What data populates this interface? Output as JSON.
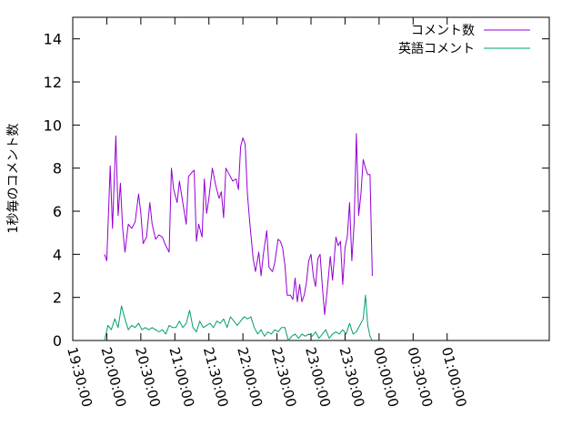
{
  "chart_data": {
    "type": "line",
    "title": "",
    "xlabel": "",
    "ylabel": "1秒毎のコメント数",
    "ylim": [
      0,
      15
    ],
    "yticks": [
      0,
      2,
      4,
      6,
      8,
      10,
      12,
      14
    ],
    "xlim_minutes": [
      -150,
      270
    ],
    "xticks": [
      {
        "label": "19:30:00",
        "minute": -150
      },
      {
        "label": "20:00:00",
        "minute": -120
      },
      {
        "label": "20:30:00",
        "minute": -90
      },
      {
        "label": "21:00:00",
        "minute": -60
      },
      {
        "label": "21:30:00",
        "minute": -30
      },
      {
        "label": "22:00:00",
        "minute": 0
      },
      {
        "label": "22:30:00",
        "minute": 30
      },
      {
        "label": "23:00:00",
        "minute": 60
      },
      {
        "label": "23:30:00",
        "minute": 90
      },
      {
        "label": "00:00:00",
        "minute": 120
      },
      {
        "label": "00:30:00",
        "minute": 150
      },
      {
        "label": "01:00:00",
        "minute": 180
      }
    ],
    "grid": false,
    "legend_position": "top-right",
    "series": [
      {
        "name": "コメント数",
        "color": "#9400d3",
        "points": [
          [
            -122,
            4.0
          ],
          [
            -120,
            3.7
          ],
          [
            -117,
            8.1
          ],
          [
            -115,
            5.2
          ],
          [
            -112,
            9.5
          ],
          [
            -110,
            5.8
          ],
          [
            -108,
            7.3
          ],
          [
            -106,
            5.2
          ],
          [
            -104,
            4.1
          ],
          [
            -101,
            5.4
          ],
          [
            -98,
            5.2
          ],
          [
            -95,
            5.5
          ],
          [
            -92,
            6.8
          ],
          [
            -90,
            5.9
          ],
          [
            -88,
            4.5
          ],
          [
            -85,
            4.8
          ],
          [
            -82,
            6.4
          ],
          [
            -80,
            5.4
          ],
          [
            -77,
            4.7
          ],
          [
            -74,
            4.9
          ],
          [
            -71,
            4.8
          ],
          [
            -68,
            4.4
          ],
          [
            -65,
            4.1
          ],
          [
            -63,
            8.0
          ],
          [
            -61,
            7.0
          ],
          [
            -58,
            6.4
          ],
          [
            -56,
            7.4
          ],
          [
            -53,
            6.4
          ],
          [
            -50,
            5.4
          ],
          [
            -48,
            7.6
          ],
          [
            -45,
            7.8
          ],
          [
            -43,
            7.9
          ],
          [
            -41,
            4.6
          ],
          [
            -39,
            5.4
          ],
          [
            -36,
            4.8
          ],
          [
            -34,
            7.5
          ],
          [
            -32,
            5.9
          ],
          [
            -30,
            6.6
          ],
          [
            -27,
            8.0
          ],
          [
            -24,
            7.2
          ],
          [
            -21,
            6.6
          ],
          [
            -19,
            6.9
          ],
          [
            -17,
            5.7
          ],
          [
            -15,
            8.0
          ],
          [
            -12,
            7.7
          ],
          [
            -9,
            7.4
          ],
          [
            -6,
            7.5
          ],
          [
            -4,
            7.0
          ],
          [
            -2,
            9.0
          ],
          [
            0,
            9.4
          ],
          [
            2,
            9.1
          ],
          [
            4,
            6.8
          ],
          [
            6,
            5.5
          ],
          [
            9,
            3.8
          ],
          [
            11,
            3.2
          ],
          [
            14,
            4.1
          ],
          [
            16,
            3.0
          ],
          [
            18,
            4.0
          ],
          [
            21,
            5.1
          ],
          [
            23,
            3.4
          ],
          [
            26,
            3.2
          ],
          [
            28,
            3.6
          ],
          [
            31,
            4.7
          ],
          [
            33,
            4.6
          ],
          [
            35,
            4.3
          ],
          [
            37,
            3.5
          ],
          [
            39,
            2.1
          ],
          [
            42,
            2.1
          ],
          [
            44,
            1.9
          ],
          [
            46,
            2.9
          ],
          [
            48,
            1.8
          ],
          [
            50,
            2.6
          ],
          [
            52,
            1.8
          ],
          [
            54,
            2.1
          ],
          [
            56,
            2.7
          ],
          [
            58,
            3.7
          ],
          [
            60,
            4.0
          ],
          [
            62,
            3.0
          ],
          [
            64,
            2.5
          ],
          [
            66,
            3.8
          ],
          [
            68,
            4.0
          ],
          [
            70,
            2.5
          ],
          [
            72,
            1.2
          ],
          [
            74,
            2.2
          ],
          [
            77,
            3.9
          ],
          [
            79,
            2.8
          ],
          [
            82,
            4.8
          ],
          [
            84,
            4.4
          ],
          [
            86,
            4.6
          ],
          [
            88,
            2.6
          ],
          [
            90,
            4.3
          ],
          [
            92,
            4.8
          ],
          [
            94,
            6.4
          ],
          [
            96,
            3.7
          ],
          [
            98,
            5.4
          ],
          [
            100,
            9.6
          ],
          [
            102,
            5.8
          ],
          [
            104,
            6.8
          ],
          [
            106,
            8.4
          ],
          [
            108,
            8.0
          ],
          [
            110,
            7.7
          ],
          [
            112,
            7.7
          ],
          [
            114,
            3.0
          ]
        ]
      },
      {
        "name": "英語コメント",
        "color": "#009e73",
        "points": [
          [
            -122,
            0.0
          ],
          [
            -119,
            0.7
          ],
          [
            -116,
            0.5
          ],
          [
            -113,
            1.0
          ],
          [
            -110,
            0.6
          ],
          [
            -107,
            1.6
          ],
          [
            -104,
            1.0
          ],
          [
            -101,
            0.5
          ],
          [
            -98,
            0.7
          ],
          [
            -95,
            0.6
          ],
          [
            -92,
            0.8
          ],
          [
            -89,
            0.5
          ],
          [
            -86,
            0.6
          ],
          [
            -83,
            0.5
          ],
          [
            -80,
            0.6
          ],
          [
            -77,
            0.5
          ],
          [
            -74,
            0.4
          ],
          [
            -71,
            0.5
          ],
          [
            -68,
            0.3
          ],
          [
            -65,
            0.7
          ],
          [
            -62,
            0.6
          ],
          [
            -59,
            0.6
          ],
          [
            -56,
            0.9
          ],
          [
            -53,
            0.6
          ],
          [
            -50,
            0.8
          ],
          [
            -47,
            1.4
          ],
          [
            -44,
            0.6
          ],
          [
            -41,
            0.4
          ],
          [
            -38,
            0.9
          ],
          [
            -35,
            0.6
          ],
          [
            -32,
            0.7
          ],
          [
            -29,
            0.8
          ],
          [
            -26,
            0.6
          ],
          [
            -23,
            0.9
          ],
          [
            -20,
            0.8
          ],
          [
            -17,
            1.0
          ],
          [
            -14,
            0.6
          ],
          [
            -11,
            1.1
          ],
          [
            -8,
            0.9
          ],
          [
            -5,
            0.7
          ],
          [
            -2,
            0.9
          ],
          [
            1,
            1.1
          ],
          [
            4,
            1.0
          ],
          [
            7,
            1.1
          ],
          [
            10,
            0.6
          ],
          [
            13,
            0.3
          ],
          [
            16,
            0.5
          ],
          [
            19,
            0.2
          ],
          [
            22,
            0.4
          ],
          [
            25,
            0.3
          ],
          [
            28,
            0.5
          ],
          [
            31,
            0.4
          ],
          [
            34,
            0.6
          ],
          [
            37,
            0.6
          ],
          [
            40,
            0.0
          ],
          [
            43,
            0.2
          ],
          [
            46,
            0.3
          ],
          [
            49,
            0.1
          ],
          [
            52,
            0.3
          ],
          [
            55,
            0.2
          ],
          [
            58,
            0.3
          ],
          [
            61,
            0.2
          ],
          [
            64,
            0.4
          ],
          [
            67,
            0.1
          ],
          [
            70,
            0.3
          ],
          [
            73,
            0.5
          ],
          [
            76,
            0.1
          ],
          [
            79,
            0.3
          ],
          [
            82,
            0.4
          ],
          [
            85,
            0.3
          ],
          [
            88,
            0.5
          ],
          [
            91,
            0.3
          ],
          [
            94,
            0.8
          ],
          [
            97,
            0.3
          ],
          [
            100,
            0.4
          ],
          [
            103,
            0.7
          ],
          [
            106,
            1.0
          ],
          [
            108,
            2.1
          ],
          [
            110,
            0.7
          ],
          [
            112,
            0.2
          ],
          [
            114,
            0.0
          ]
        ]
      }
    ]
  }
}
